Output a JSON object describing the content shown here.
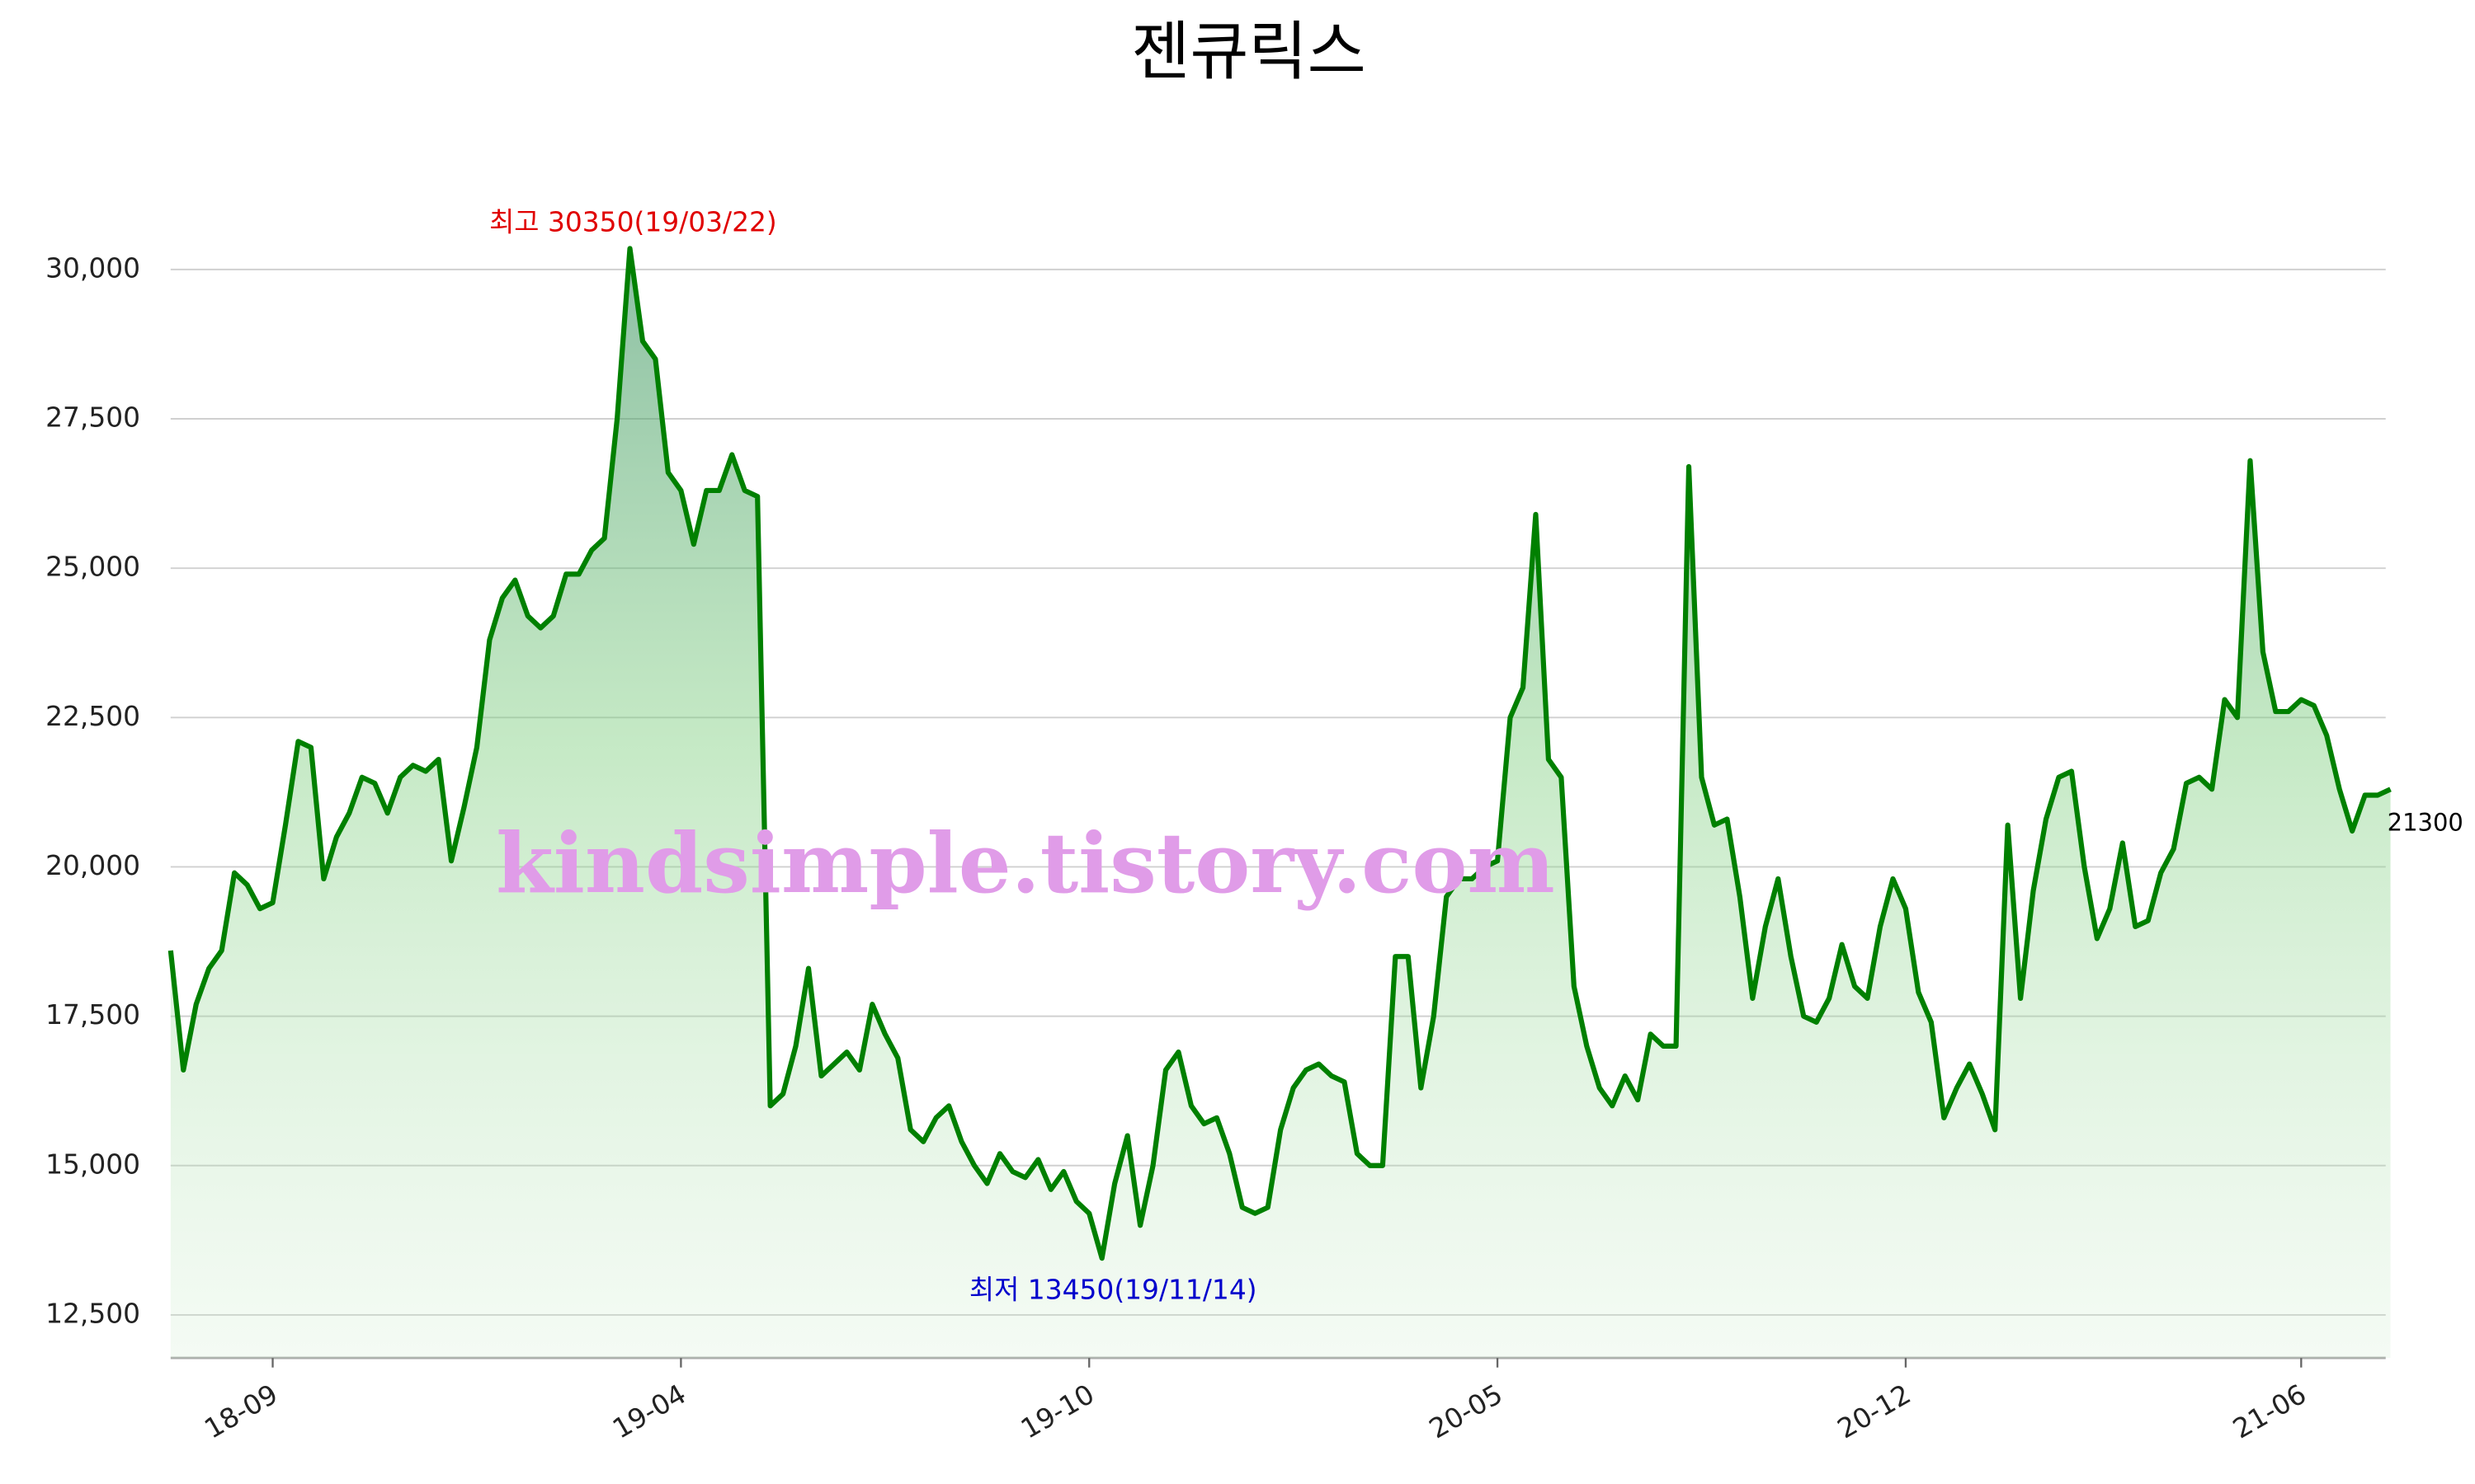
{
  "chart_data": {
    "type": "line",
    "title": "젠큐릭스",
    "categories": [
      null,
      null,
      null,
      null,
      null,
      null,
      null,
      null,
      "18-09",
      null,
      null,
      null,
      null,
      null,
      null,
      null,
      null,
      null,
      null,
      null,
      null,
      null,
      null,
      null,
      null,
      null,
      null,
      null,
      null,
      null,
      null,
      null,
      null,
      null,
      null,
      null,
      null,
      null,
      null,
      null,
      "19-04",
      null,
      null,
      null,
      null,
      null,
      null,
      null,
      null,
      null,
      null,
      null,
      null,
      null,
      null,
      null,
      null,
      null,
      null,
      null,
      null,
      null,
      null,
      null,
      null,
      null,
      null,
      null,
      null,
      null,
      null,
      null,
      "19-10",
      null,
      null,
      null,
      null,
      null,
      null,
      null,
      null,
      null,
      null,
      null,
      null,
      null,
      null,
      null,
      null,
      null,
      null,
      null,
      null,
      null,
      null,
      null,
      null,
      null,
      null,
      null,
      null,
      null,
      null,
      null,
      "20-05",
      null,
      null,
      null,
      null,
      null,
      null,
      null,
      null,
      null,
      null,
      null,
      null,
      null,
      null,
      null,
      null,
      null,
      null,
      null,
      null,
      null,
      null,
      null,
      null,
      null,
      null,
      null,
      null,
      null,
      null,
      null,
      "20-12",
      null,
      null,
      null,
      null,
      null,
      null,
      null,
      null,
      null,
      null,
      null,
      null,
      null,
      null,
      null,
      null,
      null,
      null,
      null,
      null,
      null,
      null,
      null,
      null,
      null,
      null,
      null,
      null,
      null,
      null,
      "21-06",
      null,
      null,
      null,
      null,
      null,
      null,
      null
    ],
    "values": [
      18600,
      16600,
      17700,
      18300,
      18600,
      19900,
      19700,
      19300,
      19400,
      20700,
      22100,
      22000,
      19800,
      20500,
      20900,
      21500,
      21400,
      20900,
      21500,
      21700,
      21600,
      21800,
      20100,
      21000,
      22000,
      23800,
      24500,
      24800,
      24200,
      24000,
      24200,
      24900,
      24900,
      25300,
      25500,
      27500,
      30350,
      28800,
      28500,
      26600,
      26300,
      25400,
      26300,
      26300,
      26900,
      26300,
      26200,
      16000,
      16200,
      17000,
      18300,
      16500,
      16700,
      16900,
      16600,
      17700,
      17200,
      16800,
      15600,
      15400,
      15800,
      16000,
      15400,
      15000,
      14700,
      15200,
      14900,
      14800,
      15100,
      14600,
      14900,
      14400,
      14200,
      13450,
      14700,
      15500,
      14000,
      15000,
      16600,
      16900,
      16000,
      15700,
      15800,
      15200,
      14300,
      14200,
      14300,
      15600,
      16300,
      16600,
      16700,
      16500,
      16400,
      15200,
      15000,
      15000,
      18500,
      18500,
      16300,
      17500,
      19500,
      19800,
      19800,
      20000,
      20100,
      22500,
      23000,
      25900,
      21800,
      21500,
      18000,
      17000,
      16300,
      16000,
      16500,
      16100,
      17200,
      17000,
      17000,
      26700,
      21500,
      20700,
      20800,
      19500,
      17800,
      19000,
      19800,
      18500,
      17500,
      17400,
      17800,
      18700,
      18000,
      17800,
      19000,
      19800,
      19300,
      17900,
      17400,
      15800,
      16300,
      16700,
      16200,
      15600,
      20700,
      17800,
      19600,
      20800,
      21500,
      21600,
      20000,
      18800,
      19300,
      20400,
      19000,
      19100,
      19900,
      20300,
      21400,
      21500,
      21300,
      22800,
      22500,
      26800,
      23600,
      22600,
      22600,
      22800,
      22700,
      22200,
      21300,
      20600,
      21200,
      21200,
      21300
    ],
    "color": "#008000",
    "ylim": [
      11780,
      30720
    ],
    "yticks": [
      {
        "value": 12500,
        "label": "12,500"
      },
      {
        "value": 15000,
        "label": "15,000"
      },
      {
        "value": 17500,
        "label": "17,500"
      },
      {
        "value": 20000,
        "label": "20,000"
      },
      {
        "value": 22500,
        "label": "22,500"
      },
      {
        "value": 25000,
        "label": "25,000"
      },
      {
        "value": 27500,
        "label": "27,500"
      },
      {
        "value": 30000,
        "label": "30,000"
      }
    ],
    "grid": true,
    "annotations": {
      "high": "최고 30350(19/03/22)",
      "low": "최저 13450(19/11/14)",
      "last": "21300"
    },
    "watermark": "kindsimple.tistory.com"
  }
}
